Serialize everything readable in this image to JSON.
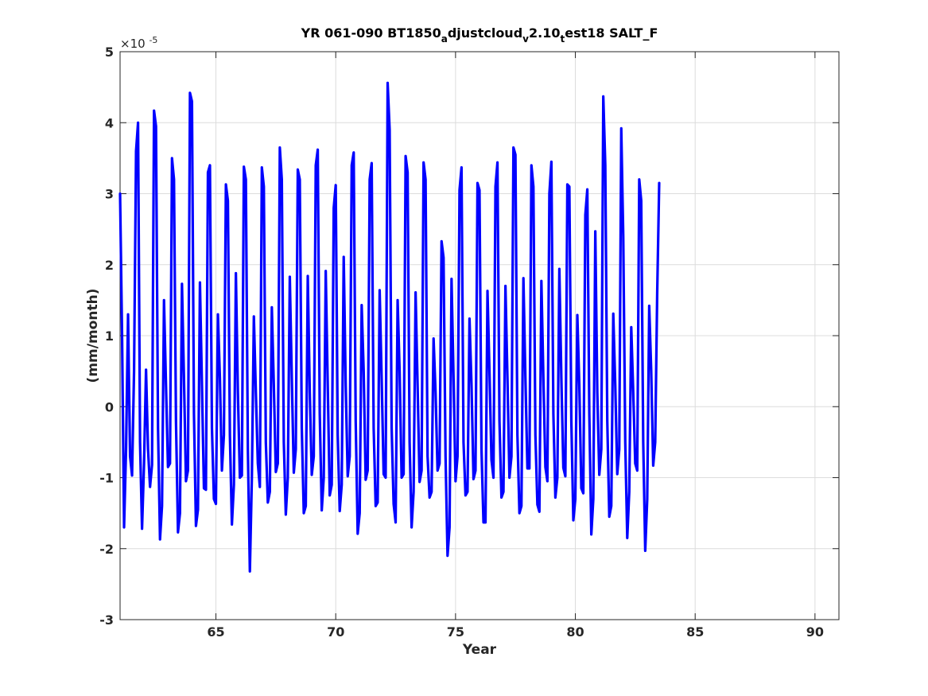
{
  "chart_data": {
    "type": "line",
    "title": {
      "parts": [
        {
          "text": "YR 061-090 BT1850",
          "sub": false
        },
        {
          "text": "a",
          "sub": true
        },
        {
          "text": "djustcloud",
          "sub": false
        },
        {
          "text": "v",
          "sub": true
        },
        {
          "text": "2.10",
          "sub": false
        },
        {
          "text": "t",
          "sub": true
        },
        {
          "text": "est18 SALT_F",
          "sub": false
        }
      ]
    },
    "xlabel": "Year",
    "ylabel": "(mm/month)",
    "y_multiplier_label": {
      "base": "×10",
      "exp": "-5"
    },
    "xlim": [
      61,
      91
    ],
    "ylim": [
      -3,
      5
    ],
    "xticks": [
      65,
      70,
      75,
      80,
      85,
      90
    ],
    "yticks": [
      -3,
      -2,
      -1,
      0,
      1,
      2,
      3,
      4,
      5
    ],
    "grid": true,
    "series": [
      {
        "color": "#0000ff",
        "start_x": 61.0,
        "x_step": 0.08333,
        "y": [
          3.0,
          1.0,
          -1.7,
          -0.6,
          1.3,
          -0.7,
          -0.97,
          0.5,
          3.6,
          4.0,
          -0.5,
          -1.72,
          -0.8,
          0.52,
          -0.6,
          -1.13,
          -0.82,
          4.17,
          3.95,
          -0.3,
          -1.87,
          -1.4,
          1.5,
          0.3,
          -0.85,
          -0.8,
          3.5,
          3.2,
          -0.2,
          -1.77,
          -1.5,
          1.73,
          0.4,
          -1.05,
          -0.9,
          4.42,
          4.3,
          -0.1,
          -1.68,
          -1.45,
          1.75,
          0.3,
          -1.15,
          -1.17,
          3.3,
          3.4,
          -0.3,
          -1.3,
          -1.37,
          1.3,
          0.4,
          -0.9,
          -0.4,
          3.13,
          2.9,
          -0.4,
          -1.66,
          -1.1,
          1.88,
          0.2,
          -1.0,
          -0.97,
          3.38,
          3.2,
          -0.6,
          -2.32,
          -1.0,
          1.27,
          0.2,
          -0.8,
          -1.13,
          3.37,
          3.1,
          -0.5,
          -1.35,
          -1.2,
          1.4,
          0.3,
          -0.92,
          -0.8,
          3.65,
          3.2,
          -0.5,
          -1.52,
          -1.0,
          1.83,
          0.4,
          -0.93,
          -0.6,
          3.34,
          3.2,
          -0.3,
          -1.5,
          -1.4,
          1.84,
          0.2,
          -0.96,
          -0.7,
          3.4,
          3.62,
          -0.1,
          -1.46,
          -1.0,
          1.91,
          0.3,
          -1.25,
          -1.1,
          2.8,
          3.12,
          -0.4,
          -1.47,
          -1.1,
          2.11,
          0.3,
          -0.98,
          -0.7,
          3.4,
          3.58,
          -0.2,
          -1.79,
          -1.5,
          1.43,
          0.5,
          -1.03,
          -0.9,
          3.2,
          3.43,
          -0.3,
          -1.4,
          -1.35,
          1.64,
          0.4,
          -0.95,
          -1.0,
          4.56,
          3.9,
          -0.3,
          -1.37,
          -1.63,
          1.5,
          0.5,
          -1.0,
          -0.95,
          3.53,
          3.3,
          -0.5,
          -1.7,
          -1.2,
          1.61,
          0.3,
          -1.06,
          -0.9,
          3.44,
          3.2,
          -0.7,
          -1.28,
          -1.2,
          0.96,
          0.2,
          -0.9,
          -0.8,
          2.33,
          2.1,
          -0.7,
          -2.1,
          -1.7,
          1.8,
          0.4,
          -1.05,
          -0.7,
          3.05,
          3.37,
          -0.5,
          -1.25,
          -1.2,
          1.24,
          0.3,
          -1.02,
          -0.9,
          3.15,
          3.05,
          -0.6,
          -1.63,
          -1.63,
          1.63,
          0.5,
          -0.75,
          -1.0,
          3.1,
          3.44,
          -0.2,
          -1.28,
          -1.2,
          1.7,
          0.4,
          -1.0,
          -0.7,
          3.65,
          3.55,
          -0.4,
          -1.5,
          -1.4,
          1.81,
          0.4,
          -0.87,
          -0.87,
          3.4,
          3.1,
          -0.4,
          -1.38,
          -1.48,
          1.77,
          0.4,
          -0.85,
          -1.05,
          3.0,
          3.45,
          -0.1,
          -1.28,
          -1.0,
          1.94,
          0.4,
          -0.86,
          -0.98,
          3.13,
          3.1,
          -0.2,
          -1.6,
          -1.3,
          1.29,
          0.3,
          -1.15,
          -1.22,
          2.7,
          3.06,
          -0.1,
          -1.8,
          -1.3,
          2.47,
          0.2,
          -0.96,
          -0.6,
          4.37,
          3.4,
          -0.2,
          -1.55,
          -1.4,
          1.31,
          0.3,
          -0.95,
          -0.6,
          3.92,
          2.4,
          -0.5,
          -1.85,
          -1.2,
          1.12,
          0.2,
          -0.8,
          -0.9,
          3.2,
          2.9,
          -0.5,
          -2.03,
          -1.3,
          1.42,
          0.5,
          -0.83,
          -0.5,
          1.6,
          3.15
        ]
      }
    ]
  }
}
